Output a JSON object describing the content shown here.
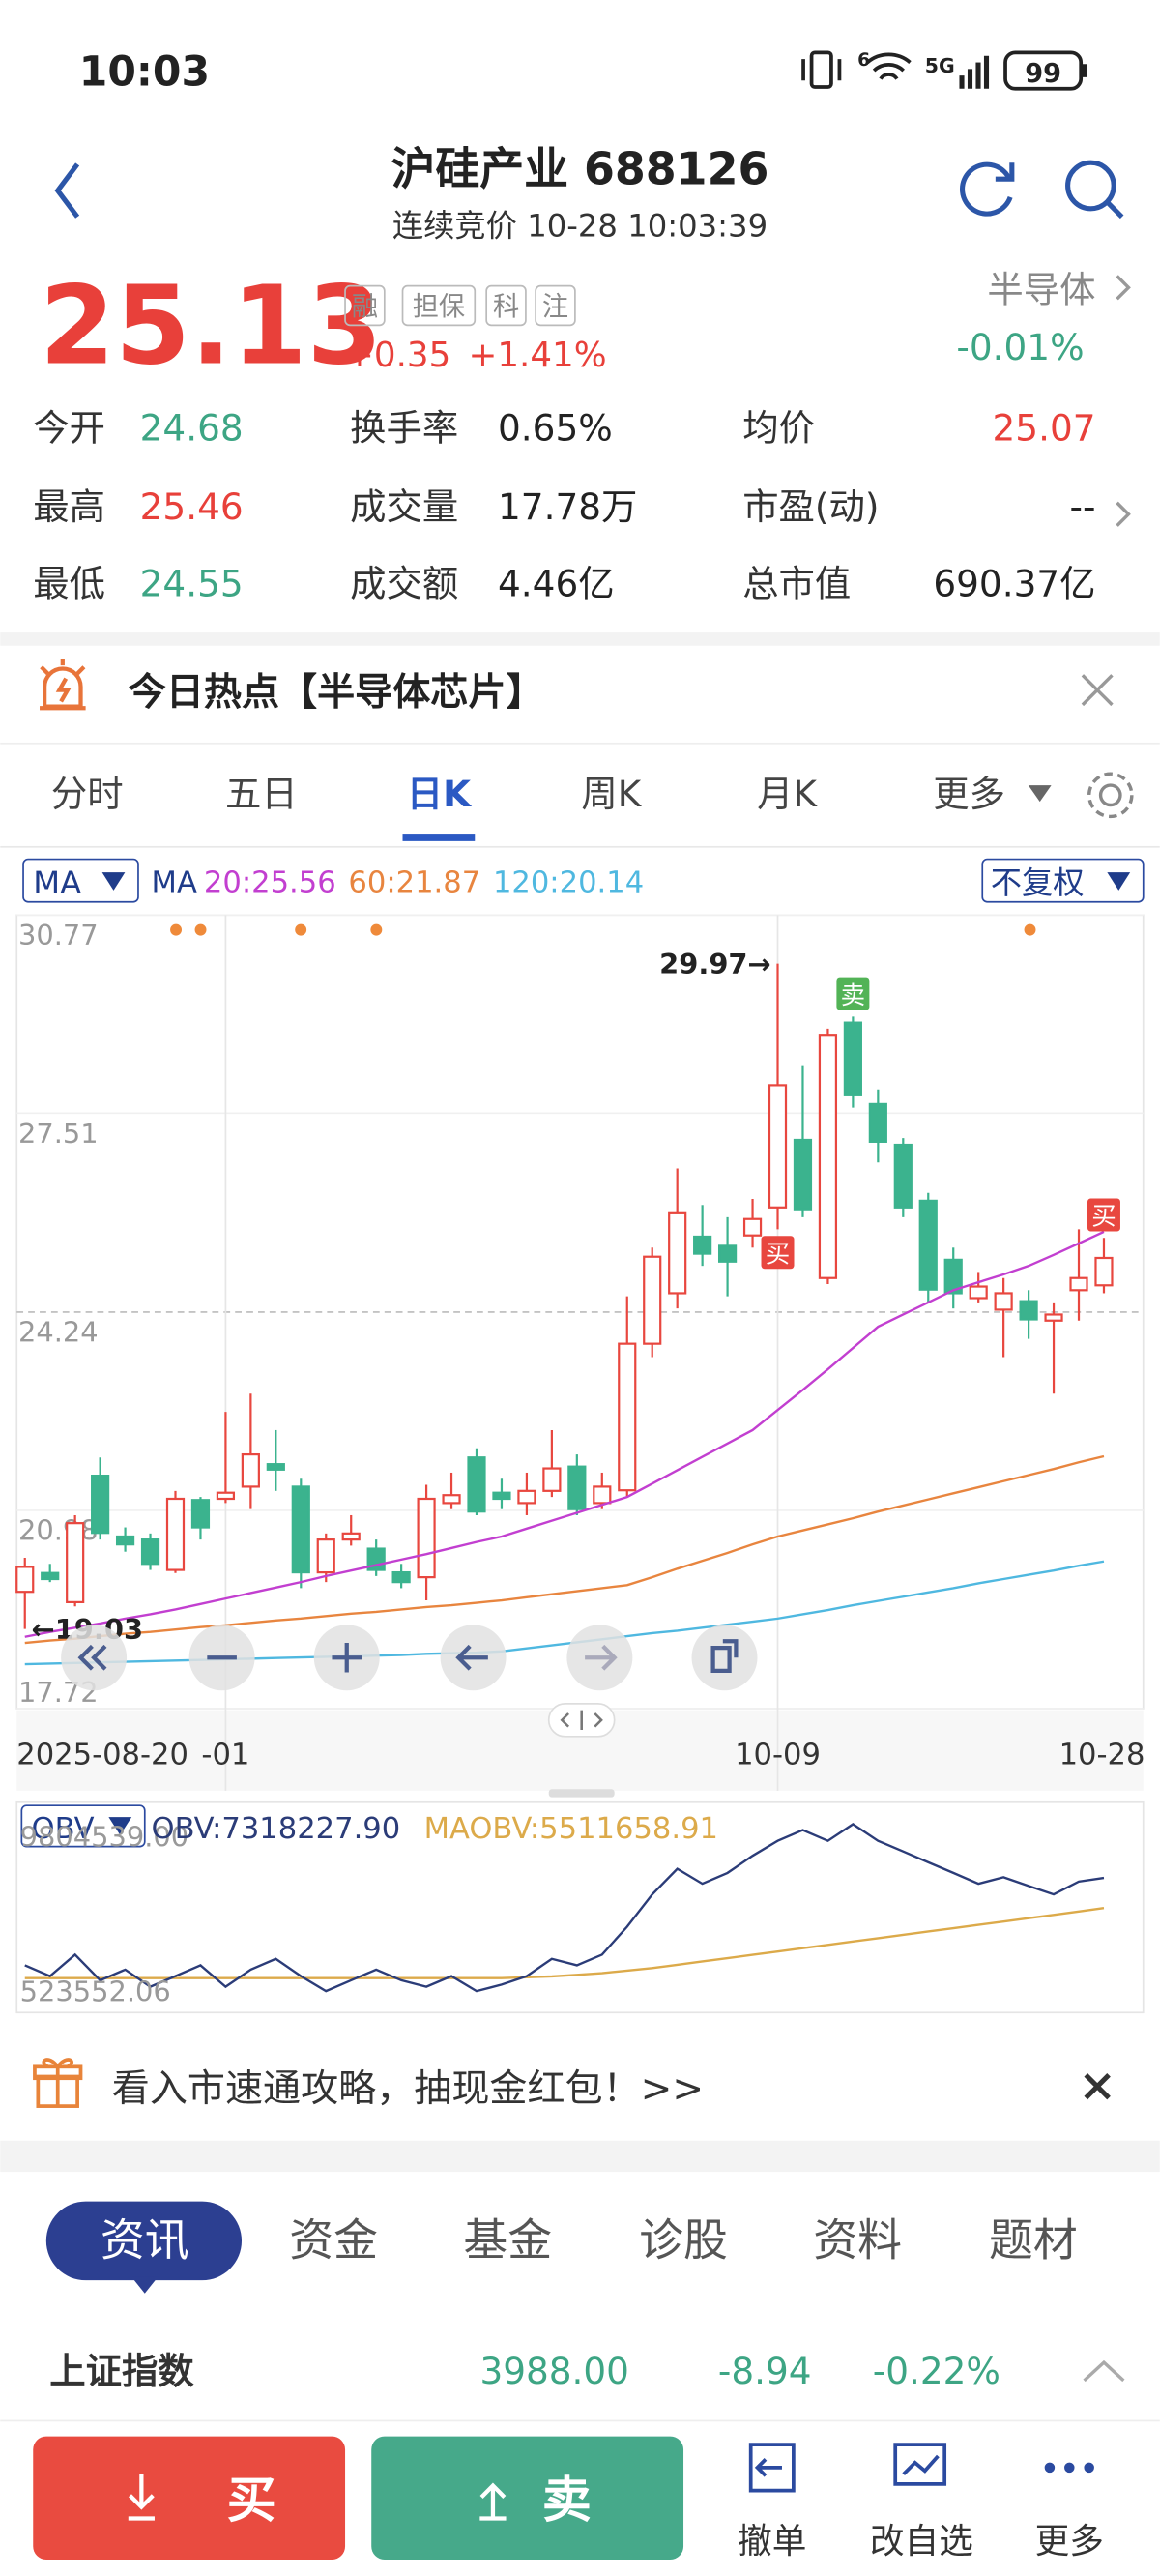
{
  "status_bar": {
    "time": "10:03",
    "wifi_label": "6",
    "network": "5G",
    "battery": "99"
  },
  "header": {
    "title": "沪硅产业 688126",
    "subtitle": "连续竞价 10-28 10:03:39"
  },
  "quote": {
    "price": "25.13",
    "tags": [
      "融",
      "担保",
      "科",
      "注"
    ],
    "change": "+0.35",
    "change_pct": "+1.41%",
    "sector": "半导体",
    "sector_change": "-0.01%"
  },
  "stats": [
    [
      {
        "label": "今开",
        "value": "24.68"
      },
      {
        "label": "换手率",
        "value": "0.65%"
      },
      {
        "label": "均价",
        "value": "25.07"
      }
    ],
    [
      {
        "label": "最高",
        "value": "25.46"
      },
      {
        "label": "成交量",
        "value": "17.78万"
      },
      {
        "label": "市盈(动)",
        "value": "--"
      }
    ],
    [
      {
        "label": "最低",
        "value": "24.55"
      },
      {
        "label": "成交额",
        "value": "4.46亿"
      },
      {
        "label": "总市值",
        "value": "690.37亿"
      }
    ]
  ],
  "hot_topic": "今日热点【半导体芯片】",
  "period_tabs": {
    "items": [
      "分时",
      "五日",
      "日K",
      "周K",
      "月K",
      "更多"
    ],
    "active": 2
  },
  "chart_data": [
    {
      "type": "candlestick",
      "indicator": "MA",
      "legend_prefix": "MA",
      "adjust": "不复权",
      "categories": [
        "2025-08-20",
        null,
        null,
        null,
        null,
        null,
        null,
        null,
        "-01",
        null,
        null,
        null,
        null,
        null,
        null,
        null,
        null,
        null,
        null,
        null,
        null,
        null,
        null,
        null,
        null,
        null,
        null,
        null,
        null,
        null,
        "10-09",
        null,
        null,
        null,
        null,
        null,
        null,
        null,
        null,
        null,
        null,
        null,
        null,
        "10-28"
      ],
      "open": [
        19.64,
        19.95,
        19.47,
        21.55,
        20.55,
        20.5,
        20.0,
        21.15,
        21.17,
        21.37,
        21.74,
        21.37,
        19.96,
        20.5,
        20.35,
        19.96,
        19.88,
        21.1,
        21.85,
        21.27,
        21.1,
        21.3,
        21.7,
        21.1,
        21.31,
        23.72,
        24.55,
        25.48,
        25.33,
        25.5,
        25.96,
        27.07,
        24.8,
        29.0,
        27.66,
        26.99,
        26.07,
        25.1,
        24.47,
        24.28,
        24.42,
        24.1,
        24.6,
        24.68
      ],
      "high": [
        20.2,
        20.1,
        20.9,
        21.85,
        20.7,
        20.6,
        21.3,
        21.2,
        22.6,
        22.9,
        22.3,
        21.5,
        20.6,
        20.9,
        20.5,
        20.1,
        21.4,
        21.6,
        22.0,
        21.5,
        21.6,
        22.3,
        21.9,
        21.6,
        24.5,
        25.3,
        26.6,
        26.0,
        25.8,
        26.1,
        29.97,
        28.3,
        28.9,
        29.1,
        27.9,
        27.1,
        26.2,
        25.3,
        24.9,
        24.8,
        24.6,
        24.4,
        25.6,
        25.46
      ],
      "low": [
        19.03,
        19.8,
        19.4,
        20.5,
        20.3,
        20.0,
        19.95,
        20.5,
        21.1,
        21.0,
        21.3,
        19.7,
        19.8,
        20.4,
        19.9,
        19.7,
        19.5,
        21.0,
        20.9,
        21.0,
        20.9,
        21.2,
        20.9,
        21.0,
        21.2,
        23.5,
        24.3,
        25.0,
        24.5,
        25.3,
        25.6,
        25.8,
        24.7,
        27.6,
        26.7,
        25.8,
        24.4,
        24.3,
        24.4,
        23.5,
        23.8,
        22.9,
        24.1,
        24.55
      ],
      "close": [
        20.05,
        19.85,
        20.77,
        20.61,
        20.42,
        20.1,
        21.17,
        20.7,
        21.27,
        21.9,
        21.65,
        19.96,
        20.5,
        20.6,
        20.0,
        19.8,
        21.17,
        21.23,
        20.96,
        21.17,
        21.3,
        21.67,
        21.0,
        21.37,
        23.72,
        25.15,
        25.88,
        25.2,
        25.07,
        25.77,
        27.97,
        25.93,
        28.8,
        27.82,
        27.04,
        25.96,
        24.61,
        24.55,
        24.66,
        24.55,
        24.12,
        24.2,
        24.8,
        25.13
      ],
      "up_color": "#e8473f",
      "down_color": "#3bb38e",
      "series": [
        {
          "name": "20:25.56",
          "color": "#c23fd0",
          "values": [
            18.9,
            18.98,
            19.05,
            19.12,
            19.2,
            19.27,
            19.35,
            19.44,
            19.53,
            19.62,
            19.71,
            19.8,
            19.9,
            19.99,
            20.08,
            20.17,
            20.26,
            20.36,
            20.46,
            20.55,
            20.68,
            20.81,
            20.94,
            21.07,
            21.2,
            21.42,
            21.64,
            21.86,
            22.08,
            22.3,
            22.63,
            22.96,
            23.3,
            23.65,
            24.0,
            24.2,
            24.4,
            24.6,
            24.73,
            24.86,
            25.0,
            25.18,
            25.37,
            25.56
          ]
        },
        {
          "name": "60:21.87",
          "color": "#e8853f",
          "values": [
            18.8,
            18.84,
            18.87,
            18.91,
            18.95,
            18.98,
            19.02,
            19.06,
            19.09,
            19.13,
            19.17,
            19.2,
            19.24,
            19.28,
            19.31,
            19.35,
            19.39,
            19.42,
            19.46,
            19.5,
            19.55,
            19.6,
            19.65,
            19.7,
            19.75,
            19.88,
            20.02,
            20.15,
            20.28,
            20.42,
            20.55,
            20.65,
            20.75,
            20.85,
            20.96,
            21.06,
            21.16,
            21.26,
            21.36,
            21.46,
            21.56,
            21.66,
            21.77,
            21.87
          ]
        },
        {
          "name": "120:20.14",
          "color": "#4fb8e0",
          "values": [
            18.45,
            18.46,
            18.47,
            18.48,
            18.49,
            18.5,
            18.51,
            18.52,
            18.53,
            18.54,
            18.55,
            18.56,
            18.57,
            18.58,
            18.59,
            18.6,
            18.62,
            18.63,
            18.64,
            18.66,
            18.71,
            18.76,
            18.81,
            18.86,
            18.91,
            18.96,
            19.0,
            19.05,
            19.1,
            19.15,
            19.2,
            19.27,
            19.34,
            19.42,
            19.49,
            19.56,
            19.63,
            19.7,
            19.78,
            19.85,
            19.92,
            19.99,
            20.07,
            20.14
          ]
        }
      ],
      "ylim": [
        17.72,
        30.77
      ],
      "yticks": [
        30.77,
        27.51,
        24.24,
        20.98,
        17.72
      ],
      "grid": true,
      "annotations": [
        {
          "text": "29.97→",
          "index": 30,
          "value": 29.97
        },
        {
          "text": "←19.03",
          "index": 0,
          "value": 19.03
        }
      ],
      "signals": [
        {
          "label": "卖",
          "index": 33,
          "place": "above",
          "color": "#52b356"
        },
        {
          "label": "买",
          "index": 30,
          "place": "below",
          "color": "#e8473f"
        },
        {
          "label": "买",
          "index": 43,
          "place": "above",
          "color": "#e8473f"
        }
      ]
    },
    {
      "type": "line",
      "indicator": "OBV",
      "series": [
        {
          "name": "OBV:7318227.90",
          "color": "#2b3c78",
          "values": [
            2070000,
            1420000,
            2710000,
            1170000,
            1810000,
            780000,
            1420000,
            2070000,
            780000,
            1810000,
            2460000,
            1420000,
            520000,
            1170000,
            1810000,
            1170000,
            780000,
            1420000,
            520000,
            910000,
            1420000,
            2460000,
            2070000,
            2710000,
            4390000,
            6330000,
            7870000,
            6970000,
            7620000,
            8650000,
            9550000,
            10200000,
            9550000,
            10550000,
            9550000,
            8910000,
            8260000,
            7620000,
            6970000,
            7360000,
            6840000,
            6330000,
            7100000,
            7318227.9
          ]
        },
        {
          "name": "MAOBV:5511658.91",
          "color": "#dcaa4a",
          "values": [
            1300000,
            1300000,
            1300000,
            1300000,
            1300000,
            1300000,
            1300000,
            1300000,
            1300000,
            1300000,
            1300000,
            1300000,
            1300000,
            1300000,
            1300000,
            1300000,
            1300000,
            1300000,
            1300000,
            1300000,
            1350000,
            1400000,
            1500000,
            1600000,
            1750000,
            1900000,
            2100000,
            2300000,
            2500000,
            2700000,
            2900000,
            3100000,
            3300000,
            3500000,
            3700000,
            3900000,
            4100000,
            4300000,
            4500000,
            4700000,
            4900000,
            5100000,
            5300000,
            5511658.91
          ]
        }
      ],
      "ylim": [
        -765478,
        11867987
      ],
      "yticks": [
        {
          "value": 9804539,
          "label": "9804539.00"
        },
        523552.06
      ]
    }
  ],
  "promo": "看入市速通攻略，抽现金红包！>>",
  "news_tabs": {
    "items": [
      "资讯",
      "资金",
      "基金",
      "诊股",
      "资料",
      "题材"
    ],
    "active": 0
  },
  "index_row": {
    "name": "上证指数",
    "value": "3988.00",
    "change": "-8.94",
    "change_pct": "-0.22%"
  },
  "bottom_bar": {
    "buy": "买",
    "sell": "卖",
    "actions": [
      "撤单",
      "改自选",
      "更多"
    ]
  }
}
